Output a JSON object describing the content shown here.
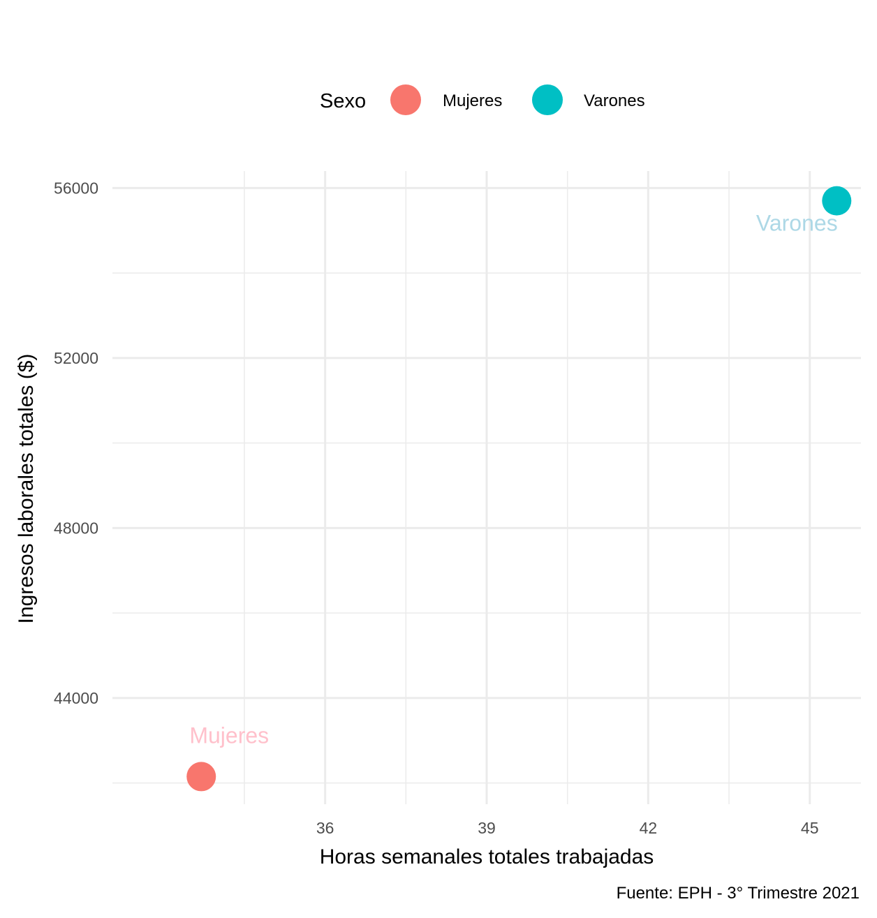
{
  "chart_data": {
    "type": "scatter",
    "title": "",
    "xlabel": "Horas semanales totales trabajadas",
    "ylabel": "Ingresos laborales totales ($)",
    "caption": "Fuente: EPH - 3° Trimestre 2021",
    "xlim": [
      32.05,
      45.95
    ],
    "ylim": [
      41500,
      56400
    ],
    "x_ticks": [
      36,
      39,
      42,
      45
    ],
    "y_ticks": [
      44000,
      48000,
      52000,
      56000
    ],
    "grid": true,
    "legend": {
      "title": "Sexo",
      "position": "top"
    },
    "series": [
      {
        "name": "Mujeres",
        "color": "#F8766D",
        "label_color": "#FFC0CB",
        "x": [
          33.7
        ],
        "y": [
          42150
        ]
      },
      {
        "name": "Varones",
        "color": "#00BFC4",
        "label_color": "#ADD8E6",
        "x": [
          45.5
        ],
        "y": [
          55700
        ]
      }
    ]
  }
}
